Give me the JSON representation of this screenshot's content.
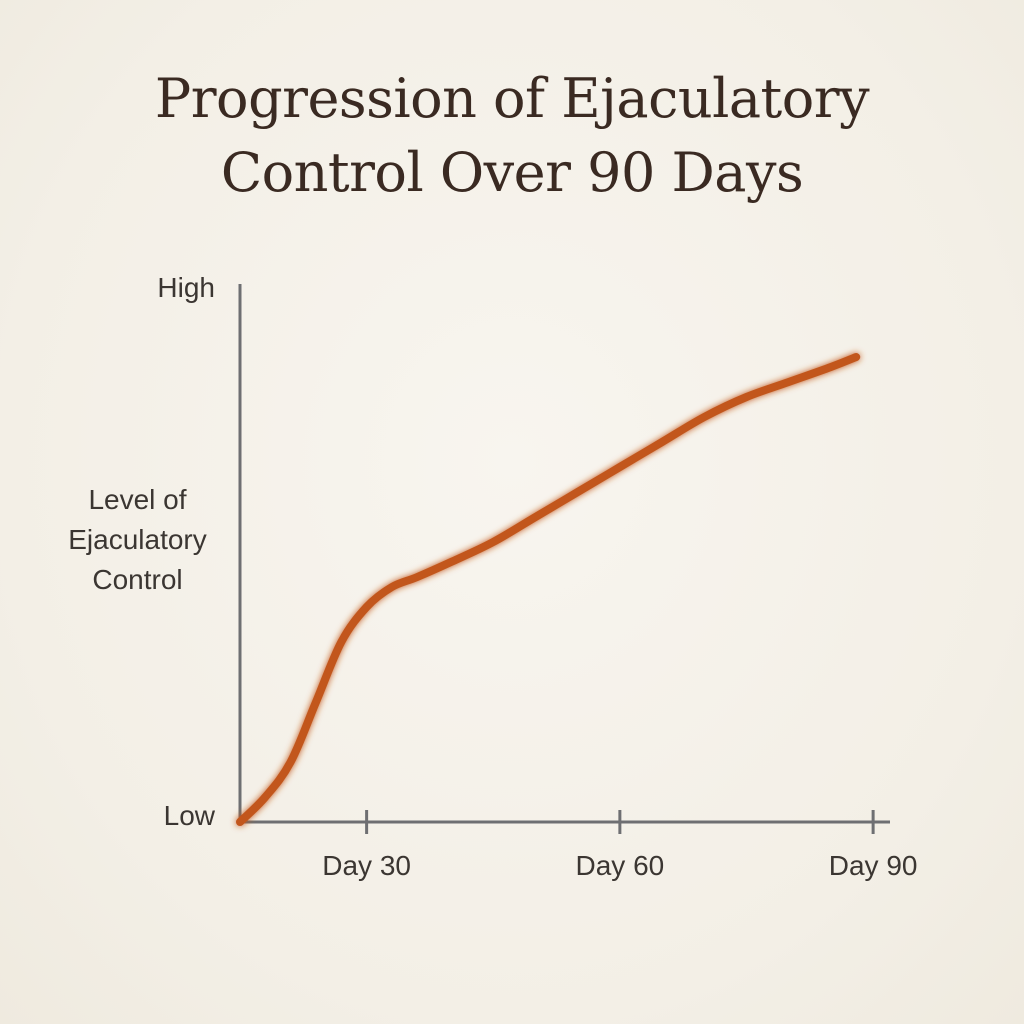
{
  "chart_data": {
    "type": "line",
    "title_lines": [
      "Progression of Ejaculatory",
      "Control Over 90 Days"
    ],
    "ylabel_lines": [
      "Level of",
      "Ejaculatory",
      "Control"
    ],
    "y_ticks": [
      "High",
      "Low"
    ],
    "x_ticks": [
      {
        "label": "Day 30",
        "value": 30
      },
      {
        "label": "Day 60",
        "value": 60
      },
      {
        "label": "Day 90",
        "value": 90
      }
    ],
    "xlim": [
      15,
      92
    ],
    "ylim": [
      0,
      1
    ],
    "series": [
      {
        "x": [
          15,
          18,
          21,
          24,
          27,
          30,
          33,
          36,
          40,
          45,
          50,
          55,
          60,
          65,
          70,
          75,
          80,
          85,
          88
        ],
        "y": [
          0,
          0.05,
          0.12,
          0.24,
          0.36,
          0.43,
          0.47,
          0.49,
          0.52,
          0.56,
          0.61,
          0.66,
          0.71,
          0.76,
          0.81,
          0.85,
          0.88,
          0.91,
          0.93
        ]
      }
    ],
    "colors": {
      "line": "#c2561b",
      "axis": "#6e6f72"
    },
    "grid": false
  }
}
